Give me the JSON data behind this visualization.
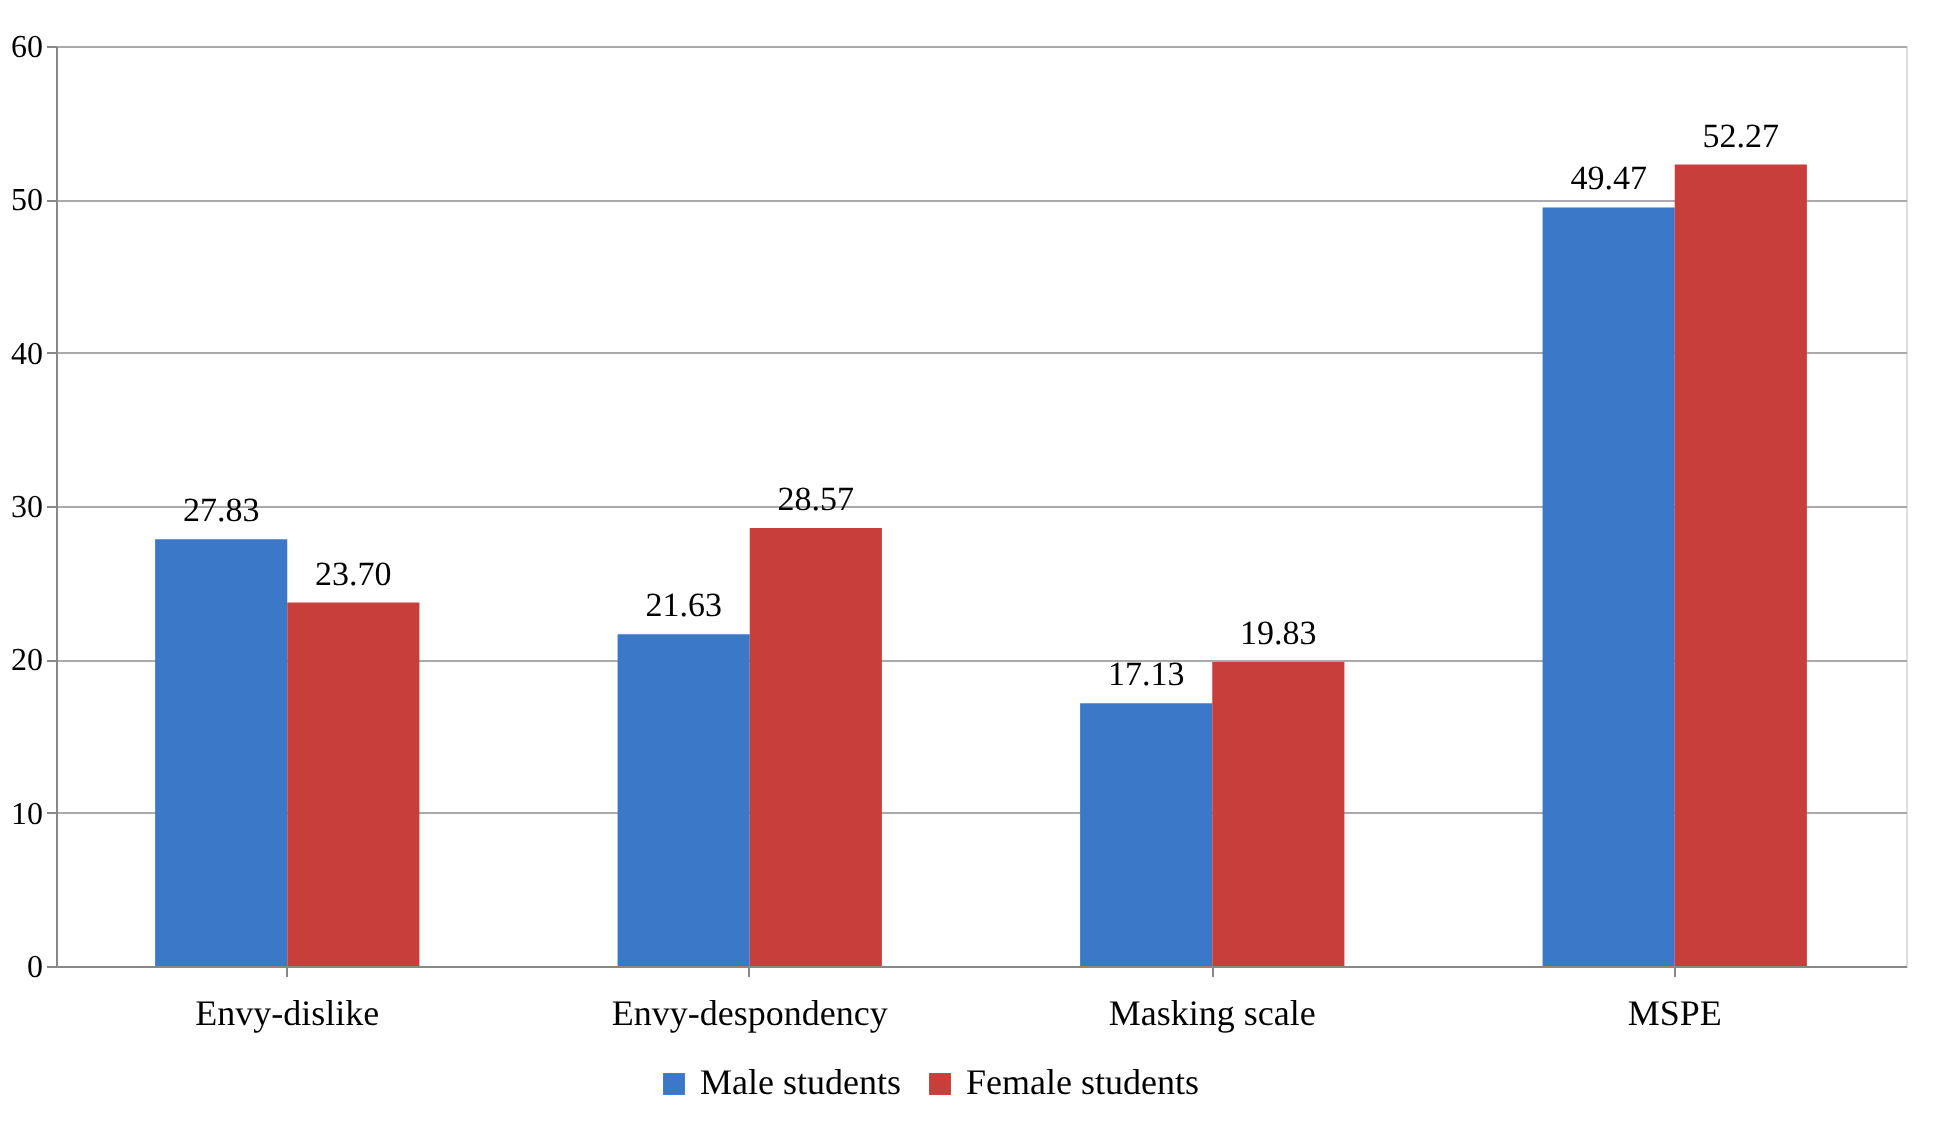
{
  "chart_data": {
    "type": "bar",
    "categories": [
      "Envy-dislike",
      "Envy-despondency",
      "Masking scale",
      "MSPE"
    ],
    "series": [
      {
        "name": "Male students",
        "color": "#3b78c8",
        "values": [
          27.83,
          21.63,
          17.13,
          49.47
        ],
        "value_labels": [
          "27.83",
          "21.63",
          "17.13",
          "49.47"
        ]
      },
      {
        "name": "Female students",
        "color": "#c73e3a",
        "values": [
          23.7,
          28.57,
          19.83,
          52.27
        ],
        "value_labels": [
          "23.70",
          "28.57",
          "19.83",
          "52.27"
        ]
      }
    ],
    "ylim": [
      0,
      60
    ],
    "yticks": [
      0,
      10,
      20,
      30,
      40,
      50,
      60
    ],
    "grid": "y",
    "legend": "bottom"
  }
}
